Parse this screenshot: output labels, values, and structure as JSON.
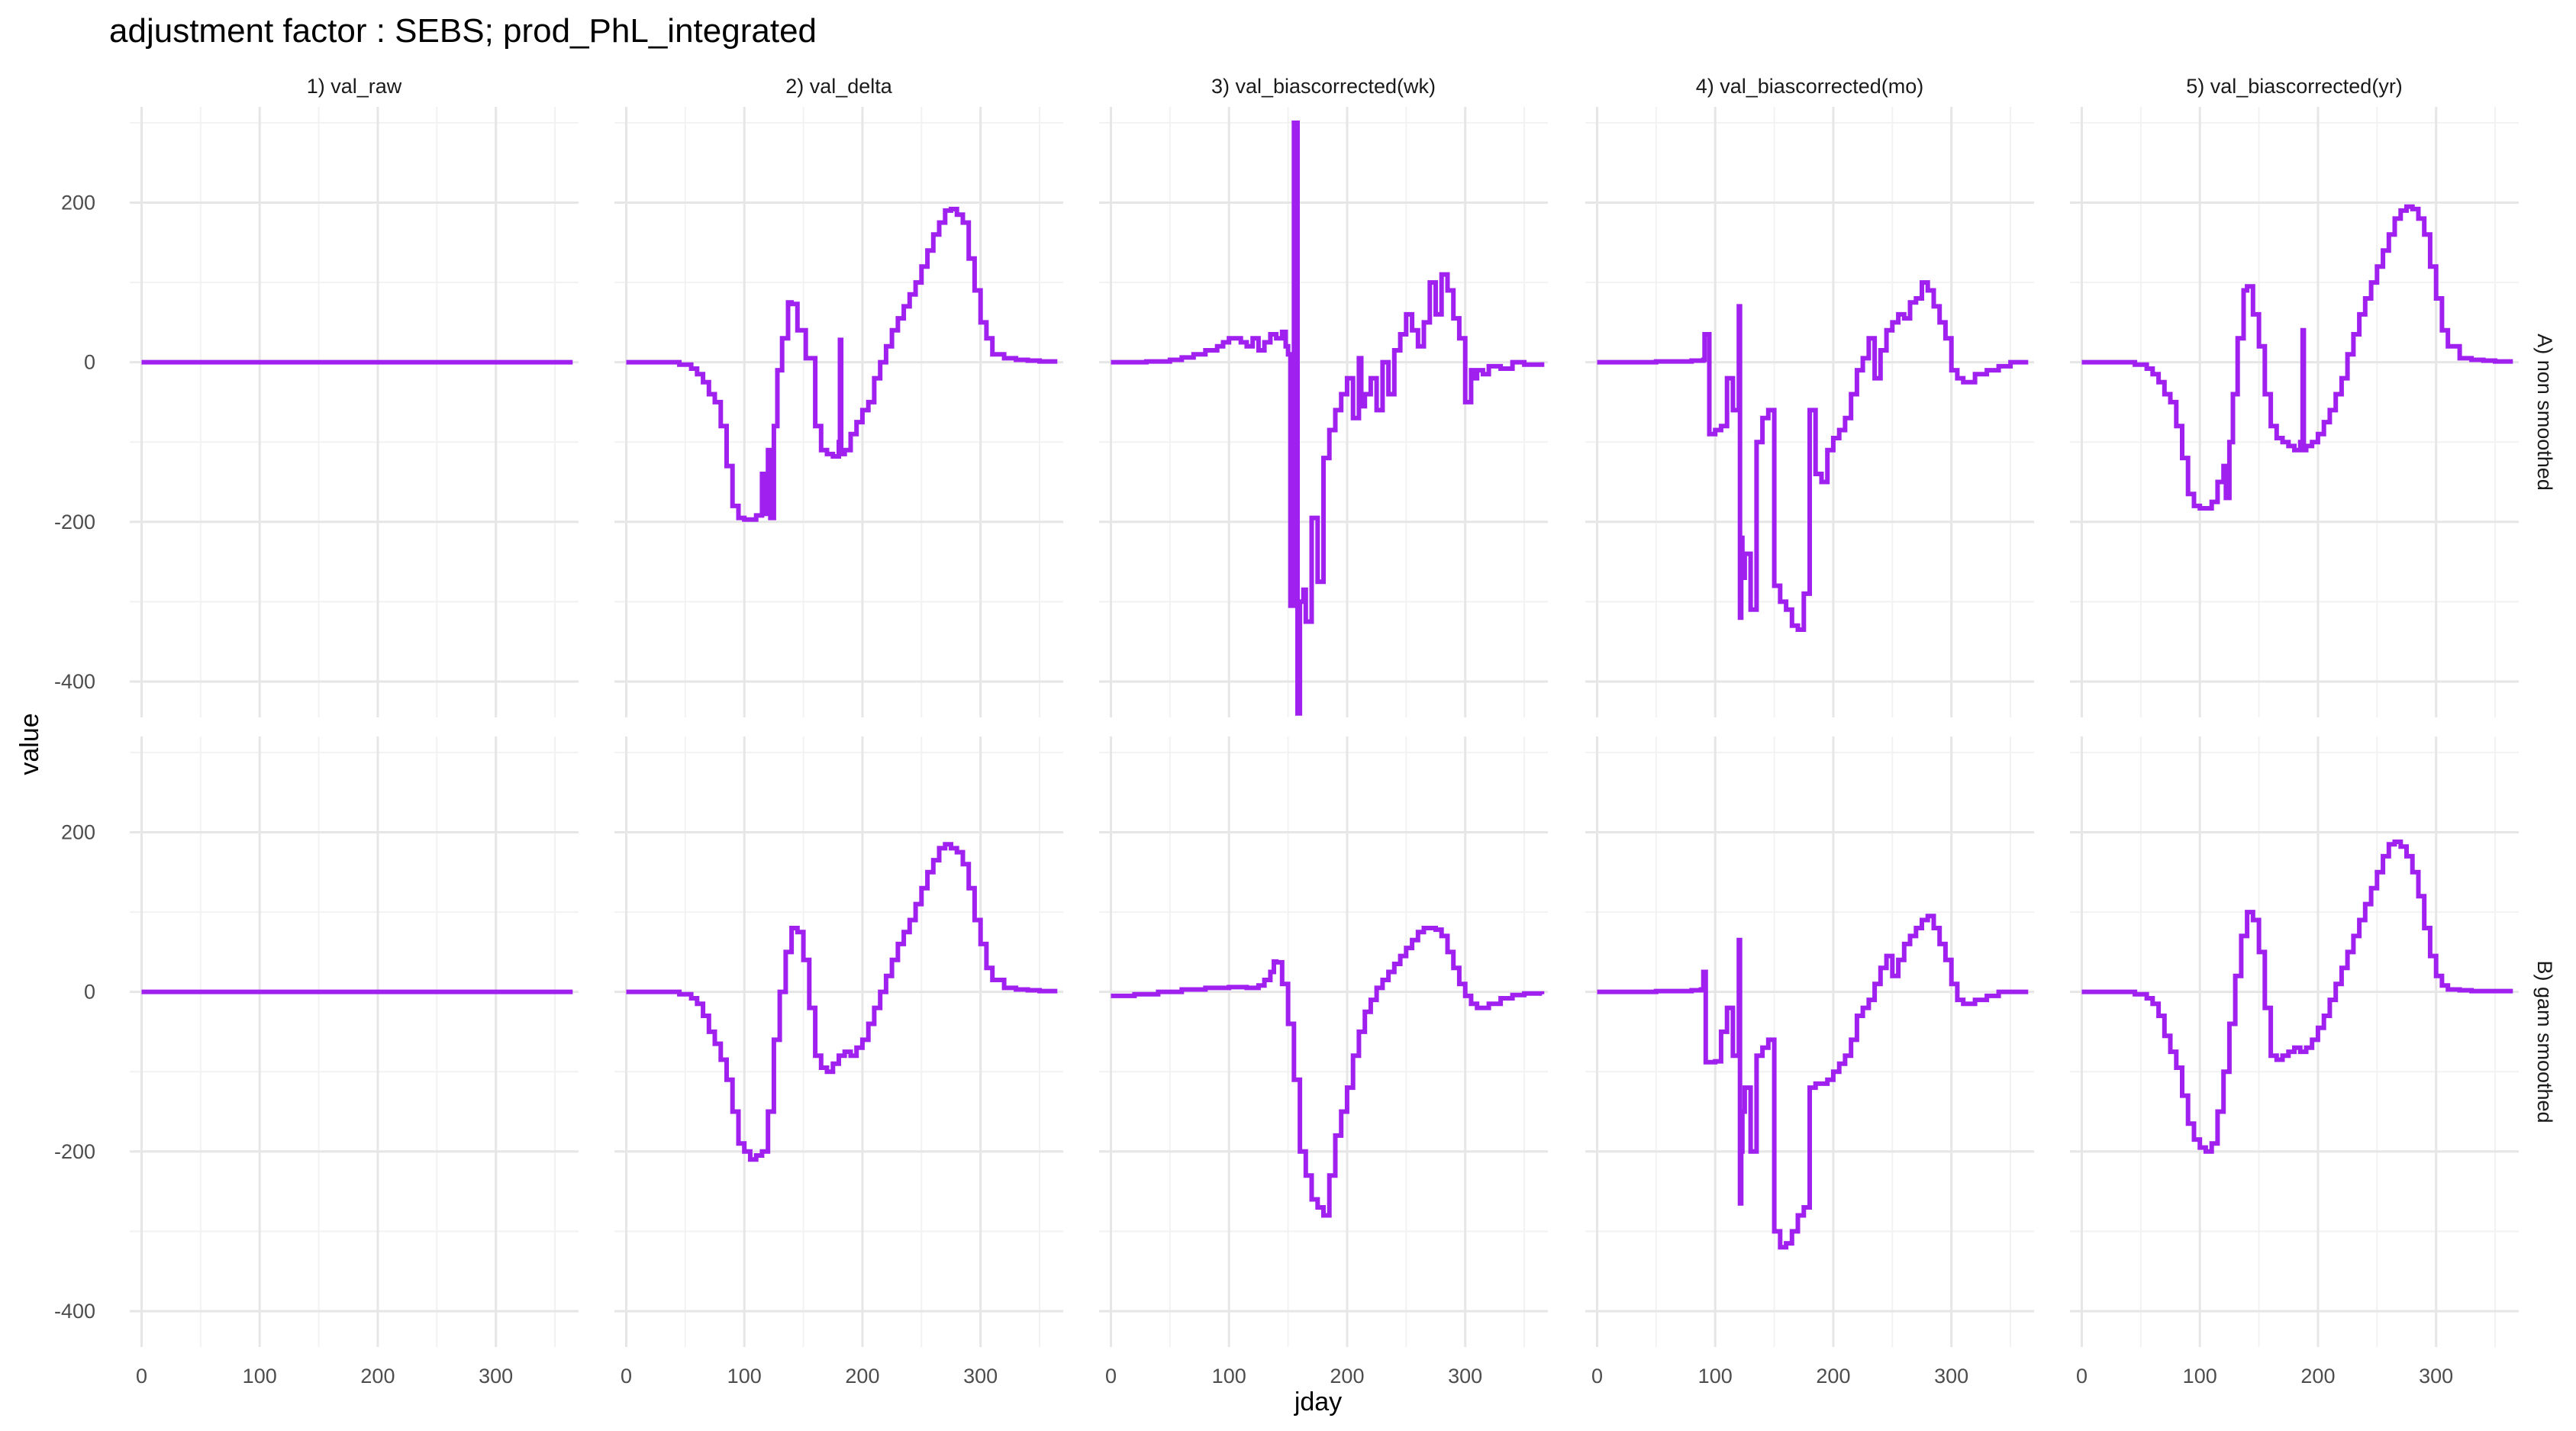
{
  "chart_data": {
    "type": "line",
    "title": "adjustment factor : SEBS; prod_PhL_integrated",
    "xlabel": "jday",
    "ylabel": "value",
    "xlim": [
      -10,
      370
    ],
    "ylim": [
      -445,
      320
    ],
    "x_ticks": [
      0,
      100,
      200,
      300
    ],
    "x_tick_labels": [
      "0",
      "100",
      "200",
      "300"
    ],
    "y_ticks": [
      -400,
      -200,
      0,
      200
    ],
    "y_tick_labels": [
      "-400",
      "-200",
      "0",
      "200"
    ],
    "grid": true,
    "legend": "none",
    "line_color": "#A020F0",
    "columns": [
      "1) val_raw",
      "2) val_delta",
      "3) val_biascorrected(wk)",
      "4) val_biascorrected(mo)",
      "5) val_biascorrected(yr)"
    ],
    "rows": [
      "A) non smoothed",
      "B) gam smoothed"
    ],
    "panels": [
      {
        "row": 0,
        "col": 0,
        "x": [
          0,
          365
        ],
        "y": [
          0,
          0
        ]
      },
      {
        "row": 0,
        "col": 1,
        "x": [
          0,
          30,
          45,
          55,
          60,
          65,
          70,
          75,
          80,
          85,
          90,
          95,
          100,
          110,
          115,
          117,
          120,
          122,
          125,
          128,
          132,
          137,
          140,
          145,
          152,
          160,
          165,
          170,
          175,
          180,
          181,
          182,
          185,
          190,
          195,
          200,
          205,
          210,
          215,
          220,
          225,
          230,
          235,
          240,
          245,
          250,
          255,
          260,
          265,
          270,
          275,
          280,
          285,
          290,
          295,
          300,
          305,
          310,
          320,
          330,
          340,
          350,
          365
        ],
        "y": [
          0,
          0,
          -3,
          -8,
          -15,
          -25,
          -40,
          -50,
          -80,
          -130,
          -180,
          -195,
          -197,
          -192,
          -140,
          -190,
          -110,
          -195,
          -80,
          -10,
          30,
          75,
          73,
          40,
          5,
          -80,
          -110,
          -115,
          -118,
          -100,
          28,
          -115,
          -110,
          -90,
          -75,
          -60,
          -50,
          -20,
          0,
          20,
          40,
          55,
          70,
          85,
          100,
          120,
          140,
          160,
          175,
          190,
          192,
          185,
          175,
          130,
          90,
          50,
          30,
          10,
          5,
          3,
          2,
          1,
          1
        ]
      },
      {
        "row": 0,
        "col": 2,
        "x": [
          0,
          30,
          50,
          60,
          70,
          80,
          90,
          95,
          100,
          110,
          115,
          120,
          125,
          130,
          135,
          140,
          145,
          148,
          150,
          152,
          155,
          158,
          160,
          163,
          165,
          170,
          175,
          180,
          185,
          190,
          195,
          200,
          205,
          210,
          212,
          215,
          220,
          225,
          230,
          235,
          240,
          245,
          250,
          255,
          260,
          265,
          270,
          275,
          280,
          285,
          290,
          295,
          300,
          305,
          308,
          310,
          315,
          320,
          330,
          340,
          350,
          365
        ],
        "y": [
          0,
          1,
          3,
          6,
          10,
          15,
          20,
          25,
          30,
          25,
          20,
          30,
          15,
          25,
          35,
          30,
          38,
          20,
          10,
          -305,
          300,
          -440,
          -300,
          -285,
          -325,
          -195,
          -275,
          -120,
          -85,
          -60,
          -40,
          -20,
          -70,
          5,
          -55,
          -40,
          -20,
          -60,
          0,
          -40,
          15,
          35,
          60,
          40,
          20,
          50,
          100,
          60,
          110,
          90,
          55,
          30,
          -50,
          -10,
          -20,
          -10,
          -15,
          -5,
          -8,
          0,
          -3,
          0
        ]
      },
      {
        "row": 0,
        "col": 3,
        "x": [
          0,
          50,
          80,
          90,
          91,
          95,
          100,
          105,
          110,
          115,
          120,
          121,
          122,
          123,
          125,
          130,
          135,
          140,
          145,
          150,
          155,
          160,
          165,
          170,
          175,
          180,
          185,
          190,
          195,
          200,
          205,
          210,
          215,
          220,
          225,
          230,
          235,
          240,
          245,
          250,
          255,
          260,
          265,
          270,
          275,
          280,
          285,
          290,
          295,
          300,
          305,
          310,
          320,
          330,
          340,
          350,
          365
        ],
        "y": [
          0,
          1,
          2,
          3,
          35,
          -90,
          -85,
          -80,
          -20,
          -60,
          70,
          -320,
          -220,
          -270,
          -240,
          -310,
          -100,
          -70,
          -60,
          -280,
          -300,
          -310,
          -330,
          -335,
          -290,
          -60,
          -140,
          -150,
          -110,
          -95,
          -85,
          -70,
          -40,
          -10,
          5,
          30,
          -20,
          15,
          40,
          50,
          60,
          55,
          75,
          80,
          100,
          90,
          70,
          50,
          30,
          -10,
          -20,
          -25,
          -15,
          -10,
          -5,
          0,
          0
        ]
      },
      {
        "row": 0,
        "col": 4,
        "x": [
          0,
          30,
          45,
          55,
          60,
          65,
          70,
          75,
          80,
          85,
          90,
          95,
          100,
          110,
          115,
          120,
          122,
          125,
          128,
          132,
          137,
          140,
          145,
          150,
          155,
          160,
          165,
          170,
          175,
          180,
          185,
          187,
          188,
          190,
          195,
          200,
          205,
          210,
          215,
          220,
          225,
          230,
          235,
          240,
          245,
          250,
          255,
          260,
          265,
          270,
          275,
          280,
          285,
          290,
          295,
          300,
          305,
          310,
          320,
          330,
          340,
          350,
          365
        ],
        "y": [
          0,
          0,
          -3,
          -8,
          -15,
          -25,
          -40,
          -50,
          -80,
          -120,
          -165,
          -180,
          -183,
          -175,
          -150,
          -130,
          -170,
          -100,
          -40,
          30,
          90,
          95,
          60,
          20,
          -40,
          -80,
          -95,
          -100,
          -105,
          -110,
          -100,
          40,
          -110,
          -105,
          -100,
          -90,
          -75,
          -60,
          -40,
          -20,
          10,
          35,
          60,
          80,
          100,
          120,
          140,
          160,
          180,
          190,
          195,
          192,
          180,
          160,
          120,
          80,
          40,
          20,
          5,
          3,
          2,
          1,
          1
        ]
      },
      {
        "row": 1,
        "col": 0,
        "x": [
          0,
          365
        ],
        "y": [
          0,
          0
        ]
      },
      {
        "row": 1,
        "col": 1,
        "x": [
          0,
          30,
          45,
          55,
          60,
          65,
          70,
          75,
          80,
          85,
          90,
          95,
          100,
          105,
          110,
          115,
          120,
          125,
          130,
          135,
          140,
          145,
          150,
          155,
          160,
          165,
          170,
          175,
          180,
          185,
          190,
          195,
          200,
          205,
          210,
          215,
          220,
          225,
          230,
          235,
          240,
          245,
          250,
          255,
          260,
          265,
          270,
          275,
          280,
          285,
          290,
          295,
          300,
          305,
          310,
          320,
          330,
          340,
          350,
          365
        ],
        "y": [
          0,
          0,
          -3,
          -8,
          -15,
          -30,
          -50,
          -65,
          -85,
          -110,
          -150,
          -190,
          -200,
          -210,
          -205,
          -200,
          -150,
          -60,
          0,
          50,
          80,
          75,
          40,
          -20,
          -80,
          -95,
          -100,
          -90,
          -80,
          -75,
          -80,
          -70,
          -60,
          -40,
          -20,
          0,
          20,
          40,
          60,
          75,
          90,
          110,
          130,
          150,
          165,
          180,
          185,
          180,
          175,
          160,
          130,
          90,
          60,
          30,
          15,
          5,
          3,
          2,
          1,
          1
        ]
      },
      {
        "row": 1,
        "col": 2,
        "x": [
          0,
          20,
          40,
          60,
          80,
          100,
          115,
          125,
          130,
          135,
          138,
          140,
          145,
          150,
          155,
          160,
          165,
          170,
          175,
          180,
          185,
          190,
          195,
          200,
          205,
          210,
          215,
          220,
          225,
          230,
          235,
          240,
          245,
          250,
          255,
          260,
          265,
          270,
          275,
          280,
          285,
          290,
          295,
          300,
          305,
          310,
          320,
          330,
          340,
          350,
          365
        ],
        "y": [
          -5,
          -3,
          0,
          3,
          5,
          6,
          5,
          8,
          15,
          25,
          38,
          37,
          10,
          -40,
          -110,
          -200,
          -230,
          -260,
          -270,
          -280,
          -230,
          -180,
          -150,
          -120,
          -80,
          -50,
          -25,
          -10,
          5,
          15,
          25,
          35,
          45,
          55,
          65,
          75,
          80,
          80,
          78,
          70,
          50,
          30,
          10,
          -5,
          -15,
          -20,
          -15,
          -8,
          -4,
          -2,
          -3
        ]
      },
      {
        "row": 1,
        "col": 3,
        "x": [
          0,
          50,
          80,
          88,
          90,
          92,
          95,
          100,
          105,
          110,
          115,
          120,
          121,
          122,
          123,
          125,
          130,
          135,
          140,
          145,
          150,
          155,
          160,
          165,
          170,
          175,
          180,
          185,
          190,
          195,
          200,
          205,
          210,
          215,
          220,
          225,
          230,
          235,
          240,
          245,
          250,
          255,
          260,
          265,
          270,
          275,
          280,
          285,
          290,
          295,
          300,
          305,
          310,
          320,
          330,
          340,
          350,
          365
        ],
        "y": [
          0,
          1,
          2,
          3,
          25,
          -88,
          -88,
          -87,
          -50,
          -20,
          -80,
          65,
          -265,
          -200,
          -150,
          -120,
          -200,
          -80,
          -70,
          -60,
          -300,
          -320,
          -315,
          -300,
          -280,
          -270,
          -120,
          -115,
          -115,
          -110,
          -100,
          -90,
          -80,
          -60,
          -30,
          -20,
          -10,
          10,
          30,
          45,
          20,
          40,
          60,
          70,
          80,
          90,
          95,
          80,
          60,
          40,
          10,
          -10,
          -15,
          -10,
          -5,
          0,
          0,
          0
        ]
      },
      {
        "row": 1,
        "col": 4,
        "x": [
          0,
          30,
          45,
          55,
          60,
          65,
          70,
          75,
          80,
          85,
          90,
          95,
          100,
          105,
          110,
          115,
          120,
          125,
          130,
          135,
          140,
          145,
          150,
          155,
          160,
          165,
          170,
          175,
          180,
          185,
          190,
          195,
          200,
          205,
          210,
          215,
          220,
          225,
          230,
          235,
          240,
          245,
          250,
          255,
          260,
          265,
          270,
          275,
          280,
          285,
          290,
          295,
          300,
          305,
          310,
          320,
          330,
          340,
          350,
          365
        ],
        "y": [
          0,
          0,
          -3,
          -8,
          -15,
          -30,
          -55,
          -75,
          -95,
          -130,
          -165,
          -185,
          -195,
          -200,
          -190,
          -150,
          -100,
          -40,
          20,
          70,
          100,
          90,
          50,
          -20,
          -80,
          -85,
          -80,
          -75,
          -70,
          -75,
          -70,
          -60,
          -45,
          -30,
          -10,
          10,
          30,
          50,
          70,
          90,
          110,
          130,
          150,
          170,
          185,
          188,
          182,
          170,
          150,
          120,
          80,
          45,
          20,
          8,
          3,
          2,
          1,
          1,
          1,
          1
        ]
      }
    ]
  }
}
